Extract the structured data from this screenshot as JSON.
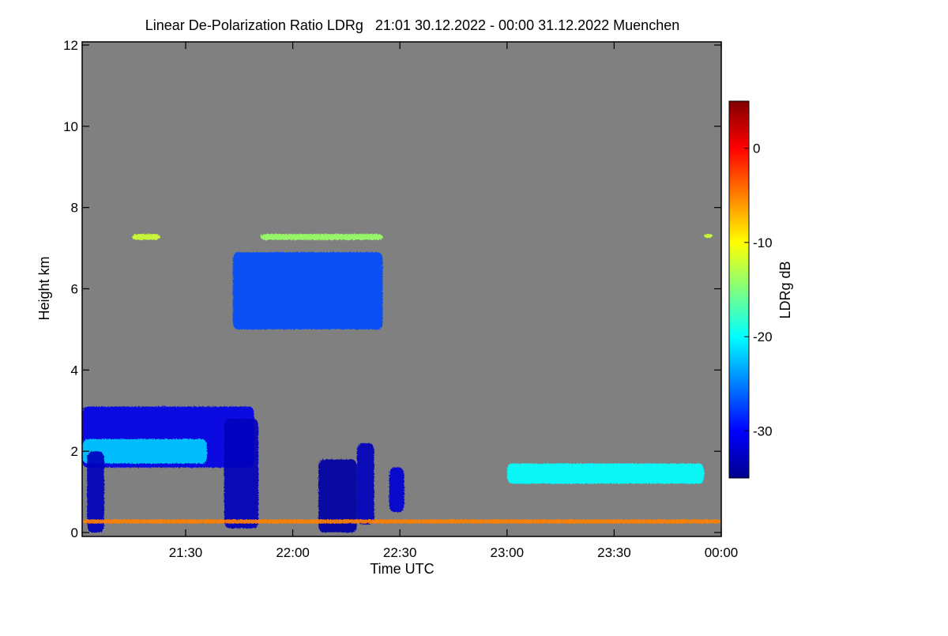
{
  "chart_data": {
    "type": "heatmap",
    "title": "Linear De-Polarization Ratio LDRg   21:01 30.12.2022 - 00:00 31.12.2022 Muenchen",
    "xlabel": "Time UTC",
    "ylabel": "Height km",
    "colorbar_label": "LDRg dB",
    "background_color": "#808080",
    "xlim": [
      21.017,
      24.0
    ],
    "ylim": [
      0,
      12
    ],
    "x_ticks": [
      {
        "value": 21.5,
        "label": "21:30"
      },
      {
        "value": 22.0,
        "label": "22:00"
      },
      {
        "value": 22.5,
        "label": "22:30"
      },
      {
        "value": 23.0,
        "label": "23:00"
      },
      {
        "value": 23.5,
        "label": "23:30"
      },
      {
        "value": 24.0,
        "label": "00:00"
      }
    ],
    "y_ticks": [
      {
        "value": 0,
        "label": "0"
      },
      {
        "value": 2,
        "label": "2"
      },
      {
        "value": 4,
        "label": "4"
      },
      {
        "value": 6,
        "label": "6"
      },
      {
        "value": 8,
        "label": "8"
      },
      {
        "value": 10,
        "label": "10"
      },
      {
        "value": 12,
        "label": "12"
      }
    ],
    "colorbar_range": [
      -35,
      5
    ],
    "colorbar_ticks": [
      {
        "value": 0,
        "label": "0"
      },
      {
        "value": -10,
        "label": "-10"
      },
      {
        "value": -20,
        "label": "-20"
      },
      {
        "value": -30,
        "label": "-30"
      }
    ],
    "colormap": [
      "#00008f",
      "#0000ff",
      "#0080ff",
      "#00ffff",
      "#80ff80",
      "#ffff00",
      "#ff8000",
      "#ff0000",
      "#800000"
    ],
    "regions": [
      {
        "name": "ice-cloud-6km",
        "t0": 21.72,
        "t1": 22.42,
        "h0": 5.0,
        "h1": 6.9,
        "ldr": -27
      },
      {
        "name": "cirrus-7km-a",
        "t0": 21.25,
        "t1": 21.38,
        "h0": 7.2,
        "h1": 7.35,
        "ldr": -12
      },
      {
        "name": "cirrus-7km-b",
        "t0": 21.85,
        "t1": 22.42,
        "h0": 7.2,
        "h1": 7.35,
        "ldr": -14
      },
      {
        "name": "cirrus-7km-c",
        "t0": 23.92,
        "t1": 23.96,
        "h0": 7.25,
        "h1": 7.35,
        "ldr": -12
      },
      {
        "name": "low-cloud-2km",
        "t0": 21.017,
        "t1": 21.82,
        "h0": 1.6,
        "h1": 3.1,
        "ldr": -31
      },
      {
        "name": "cloud-base-layer",
        "t0": 21.017,
        "t1": 21.6,
        "h0": 1.7,
        "h1": 2.3,
        "ldr": -22
      },
      {
        "name": "fall-streak-1",
        "t0": 21.04,
        "t1": 21.12,
        "h0": 0.0,
        "h1": 2.0,
        "ldr": -33
      },
      {
        "name": "fall-streak-2",
        "t0": 21.68,
        "t1": 21.84,
        "h0": 0.1,
        "h1": 2.8,
        "ldr": -33
      },
      {
        "name": "fall-streak-3",
        "t0": 22.12,
        "t1": 22.3,
        "h0": 0.0,
        "h1": 1.8,
        "ldr": -34
      },
      {
        "name": "fall-streak-4",
        "t0": 22.3,
        "t1": 22.38,
        "h0": 0.2,
        "h1": 2.2,
        "ldr": -33
      },
      {
        "name": "fall-streak-5",
        "t0": 22.45,
        "t1": 22.52,
        "h0": 0.5,
        "h1": 1.6,
        "ldr": -32
      },
      {
        "name": "layer-1.4km",
        "t0": 23.0,
        "t1": 23.92,
        "h0": 1.2,
        "h1": 1.7,
        "ldr": -20
      },
      {
        "name": "surface-layer",
        "t0": 21.017,
        "t1": 24.0,
        "h0": 0.22,
        "h1": 0.32,
        "ldr": -5
      }
    ]
  }
}
